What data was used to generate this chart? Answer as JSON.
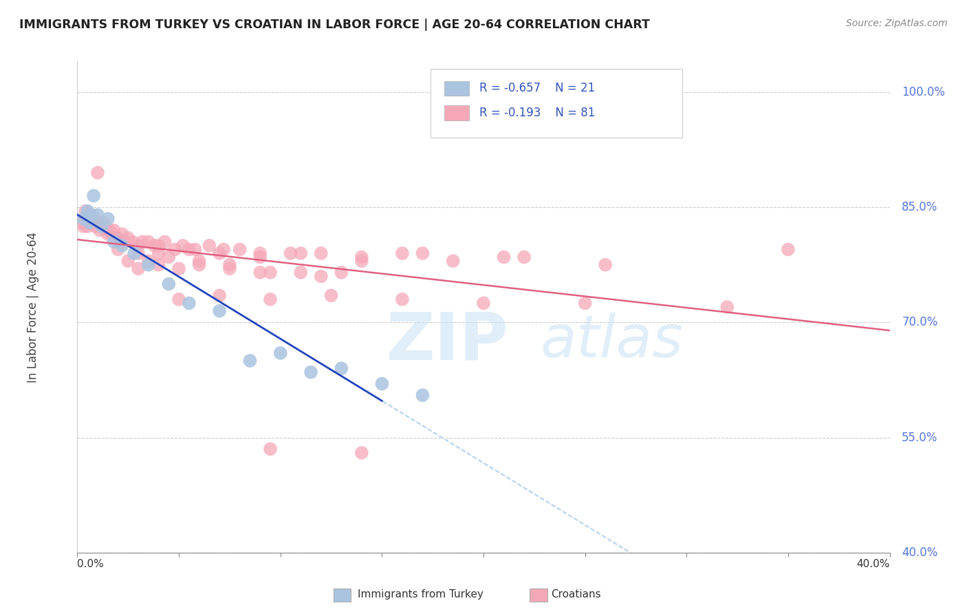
{
  "title": "IMMIGRANTS FROM TURKEY VS CROATIAN IN LABOR FORCE | AGE 20-64 CORRELATION CHART",
  "source": "Source: ZipAtlas.com",
  "ylabel": "In Labor Force | Age 20-64",
  "y_ticks": [
    40.0,
    55.0,
    70.0,
    85.0,
    100.0
  ],
  "x_range": [
    0.0,
    40.0
  ],
  "y_range": [
    40.0,
    104.0
  ],
  "legend_blue_r": "R = -0.657",
  "legend_blue_n": "N = 21",
  "legend_pink_r": "R = -0.193",
  "legend_pink_n": "N = 81",
  "blue_color": "#aac4e0",
  "pink_color": "#f5aabs",
  "blue_line_color": "#2244bb",
  "pink_line_color": "#e06080",
  "dashed_line_color": "#aaccee",
  "watermark_zip": "ZIP",
  "watermark_atlas": "atlas",
  "background_color": "#ffffff",
  "blue_scatter_x": [
    0.3,
    0.5,
    0.6,
    0.7,
    0.8,
    1.0,
    1.2,
    1.5,
    1.8,
    2.2,
    2.8,
    3.5,
    4.5,
    5.5,
    7.0,
    8.5,
    10.0,
    11.5,
    13.0,
    15.0,
    17.0
  ],
  "blue_scatter_y": [
    83.5,
    84.5,
    83.0,
    84.0,
    86.5,
    84.0,
    82.5,
    83.5,
    80.5,
    80.0,
    79.0,
    77.5,
    75.0,
    72.5,
    71.5,
    65.0,
    66.0,
    63.5,
    64.0,
    62.0,
    60.5
  ],
  "pink_scatter_x": [
    0.2,
    0.3,
    0.4,
    0.5,
    0.6,
    0.7,
    0.8,
    0.9,
    1.0,
    1.0,
    1.1,
    1.2,
    1.3,
    1.4,
    1.5,
    1.6,
    1.7,
    1.8,
    1.9,
    2.0,
    2.1,
    2.2,
    2.3,
    2.5,
    2.7,
    3.0,
    3.2,
    3.5,
    3.8,
    4.0,
    4.3,
    4.8,
    5.2,
    5.8,
    6.5,
    7.2,
    8.0,
    9.0,
    10.5,
    12.0,
    14.0,
    16.0,
    18.5,
    22.0,
    26.0,
    35.0,
    3.0,
    4.0,
    5.0,
    6.0,
    7.5,
    9.0,
    11.0,
    13.0,
    2.5,
    3.5,
    4.5,
    6.0,
    7.5,
    9.5,
    12.0,
    2.0,
    3.0,
    4.0,
    5.5,
    7.0,
    9.0,
    11.0,
    14.0,
    17.0,
    21.0,
    5.0,
    7.0,
    9.5,
    12.5,
    16.0,
    20.0,
    25.0,
    32.0,
    9.5,
    14.0
  ],
  "pink_scatter_y": [
    83.0,
    82.5,
    84.5,
    82.5,
    84.0,
    83.5,
    83.5,
    82.5,
    83.0,
    89.5,
    82.0,
    82.5,
    83.0,
    82.0,
    81.5,
    82.0,
    81.5,
    82.0,
    81.0,
    81.0,
    80.5,
    81.5,
    80.5,
    81.0,
    80.5,
    80.0,
    80.5,
    80.5,
    80.0,
    80.0,
    80.5,
    79.5,
    80.0,
    79.5,
    80.0,
    79.5,
    79.5,
    79.0,
    79.0,
    79.0,
    78.5,
    79.0,
    78.0,
    78.5,
    77.5,
    79.5,
    77.0,
    77.5,
    77.0,
    78.0,
    77.5,
    76.5,
    76.5,
    76.5,
    78.0,
    78.0,
    78.5,
    77.5,
    77.0,
    76.5,
    76.0,
    79.5,
    79.0,
    79.0,
    79.5,
    79.0,
    78.5,
    79.0,
    78.0,
    79.0,
    78.5,
    73.0,
    73.5,
    73.0,
    73.5,
    73.0,
    72.5,
    72.5,
    72.0,
    53.5,
    53.0
  ]
}
